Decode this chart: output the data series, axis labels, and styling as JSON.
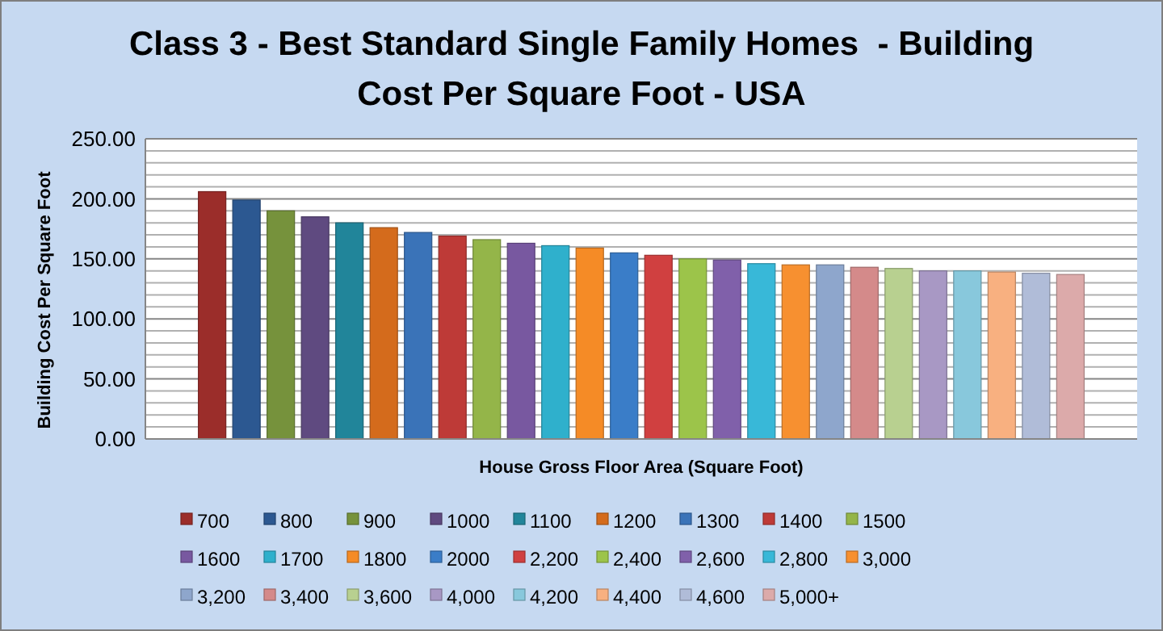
{
  "chart_data": {
    "type": "bar",
    "title": "Class 3 - Best Standard Single Family Homes  - Building Cost Per Square Foot - USA",
    "xlabel": "House Gross Floor Area (Square Foot)",
    "ylabel": "Building Cost Per Square Foot",
    "categories": [
      null
    ],
    "series": [
      {
        "name": "700",
        "color": "#9b2d2a",
        "values": [
          206
        ]
      },
      {
        "name": "800",
        "color": "#2c5891",
        "values": [
          199
        ]
      },
      {
        "name": "900",
        "color": "#76923c",
        "values": [
          190
        ]
      },
      {
        "name": "1000",
        "color": "#5f4a80",
        "values": [
          185
        ]
      },
      {
        "name": "1100",
        "color": "#21859a",
        "values": [
          180
        ]
      },
      {
        "name": "1200",
        "color": "#d46b1c",
        "values": [
          176
        ]
      },
      {
        "name": "1300",
        "color": "#3a73b8",
        "values": [
          172
        ]
      },
      {
        "name": "1400",
        "color": "#be3a37",
        "values": [
          169
        ]
      },
      {
        "name": "1500",
        "color": "#94b549",
        "values": [
          166
        ]
      },
      {
        "name": "1600",
        "color": "#7858a0",
        "values": [
          163
        ]
      },
      {
        "name": "1700",
        "color": "#2fb0cc",
        "values": [
          161
        ]
      },
      {
        "name": "1800",
        "color": "#f58b26",
        "values": [
          159
        ]
      },
      {
        "name": "2000",
        "color": "#3a7dc8",
        "values": [
          155
        ]
      },
      {
        "name": "2,200",
        "color": "#d04040",
        "values": [
          153
        ]
      },
      {
        "name": "2,400",
        "color": "#9cc44a",
        "values": [
          150
        ]
      },
      {
        "name": "2,600",
        "color": "#8060aa",
        "values": [
          149
        ]
      },
      {
        "name": "2,800",
        "color": "#38b8d8",
        "values": [
          146
        ]
      },
      {
        "name": "3,000",
        "color": "#f79030",
        "values": [
          145
        ]
      },
      {
        "name": "3,200",
        "color": "#8ea6cc",
        "values": [
          145
        ]
      },
      {
        "name": "3,400",
        "color": "#d48a8a",
        "values": [
          143
        ]
      },
      {
        "name": "3,600",
        "color": "#b8d090",
        "values": [
          142
        ]
      },
      {
        "name": "4,000",
        "color": "#a898c4",
        "values": [
          140
        ]
      },
      {
        "name": "4,200",
        "color": "#88c8dc",
        "values": [
          140
        ]
      },
      {
        "name": "4,400",
        "color": "#f8b080",
        "values": [
          139
        ]
      },
      {
        "name": "4,600",
        "color": "#b0bcd8",
        "values": [
          138
        ]
      },
      {
        "name": "5,000+",
        "color": "#dcaaaa",
        "values": [
          137
        ]
      }
    ],
    "ylim": [
      0,
      250
    ],
    "yticks": [
      {
        "value": 0,
        "label": "0.00"
      },
      {
        "value": 10,
        "label": null
      },
      {
        "value": 20,
        "label": null
      },
      {
        "value": 30,
        "label": null
      },
      {
        "value": 40,
        "label": null
      },
      {
        "value": 50,
        "label": "50.00"
      },
      {
        "value": 60,
        "label": null
      },
      {
        "value": 70,
        "label": null
      },
      {
        "value": 80,
        "label": null
      },
      {
        "value": 90,
        "label": null
      },
      {
        "value": 100,
        "label": "100.00"
      },
      {
        "value": 110,
        "label": null
      },
      {
        "value": 120,
        "label": null
      },
      {
        "value": 130,
        "label": null
      },
      {
        "value": 140,
        "label": null
      },
      {
        "value": 150,
        "label": "150.00"
      },
      {
        "value": 160,
        "label": null
      },
      {
        "value": 170,
        "label": null
      },
      {
        "value": 180,
        "label": null
      },
      {
        "value": 190,
        "label": null
      },
      {
        "value": 200,
        "label": "200.00"
      },
      {
        "value": 210,
        "label": null
      },
      {
        "value": 220,
        "label": null
      },
      {
        "value": 230,
        "label": null
      },
      {
        "value": 240,
        "label": null
      },
      {
        "value": 250,
        "label": "250.00"
      }
    ],
    "grid": "y",
    "legend": "bottom"
  }
}
